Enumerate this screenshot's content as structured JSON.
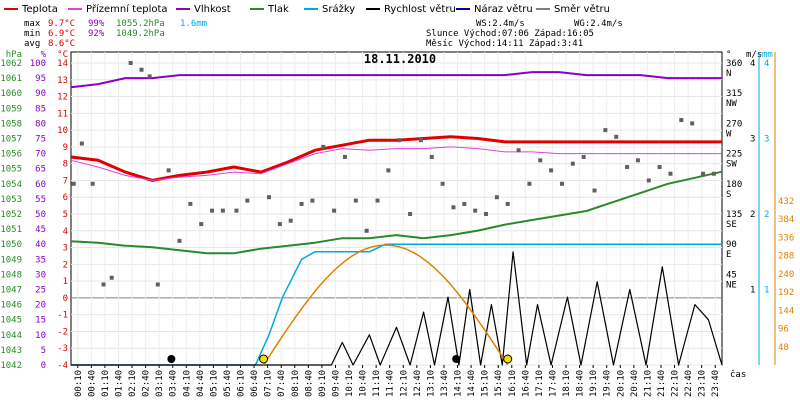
{
  "legend": [
    {
      "label": "Teplota",
      "color": "#e00000"
    },
    {
      "label": "Přízemní teplota",
      "color": "#e040e0"
    },
    {
      "label": "Vlhkost",
      "color": "#8a00c8"
    },
    {
      "label": "Tlak",
      "color": "#2a8a2a"
    },
    {
      "label": "Srážky",
      "color": "#00a8e0"
    },
    {
      "label": "Rychlost větru",
      "color": "#000000"
    },
    {
      "label": "Náraz větru",
      "color": "#0000a0"
    },
    {
      "label": "Směr větru",
      "color": "#808080"
    }
  ],
  "stats": {
    "max_label": "max",
    "min_label": "min",
    "avg_label": "avg",
    "max_temp": "9.7°C",
    "max_hum": "99%",
    "max_press": "1055.2hPa",
    "max_rain": "1.6mm",
    "min_temp": "6.9°C",
    "min_hum": "92%",
    "min_press": "1049.2hPa",
    "avg_temp": "8.6°C"
  },
  "info": {
    "ws": "WS:2.4m/s",
    "wg": "WG:2.4m/s",
    "sun": "Slunce Východ:07:06  Západ:16:05",
    "moon": "Měsíc  Východ:14:11  Západ:3:41"
  },
  "chart_data": {
    "type": "line",
    "title": "18.11.2010",
    "xlabel": "čas",
    "x_ticks": [
      "00:10",
      "00:40",
      "01:10",
      "01:40",
      "02:10",
      "02:40",
      "03:10",
      "03:40",
      "04:10",
      "04:40",
      "05:10",
      "05:40",
      "06:10",
      "06:40",
      "07:10",
      "07:40",
      "08:10",
      "08:40",
      "09:10",
      "09:40",
      "10:10",
      "10:40",
      "11:10",
      "11:40",
      "12:10",
      "12:40",
      "13:10",
      "13:40",
      "14:10",
      "14:40",
      "15:10",
      "15:40",
      "16:10",
      "16:40",
      "17:10",
      "17:40",
      "18:10",
      "18:40",
      "19:10",
      "19:40",
      "20:10",
      "20:40",
      "21:10",
      "21:40",
      "22:10",
      "22:40",
      "23:10",
      "23:40"
    ],
    "axes": {
      "hpa": {
        "label": "hPa",
        "color": "#2a8a2a",
        "ticks": [
          "1062",
          "1061",
          "1060",
          "1059",
          "1058",
          "1057",
          "1056",
          "1055",
          "1054",
          "1053",
          "1052",
          "1051",
          "1050",
          "1049",
          "1048",
          "1047",
          "1046",
          "1045",
          "1044",
          "1043",
          "1042"
        ]
      },
      "pct": {
        "label": "%",
        "color": "#8a00c8",
        "ticks": [
          "100",
          "95",
          "90",
          "85",
          "80",
          "75",
          "70",
          "65",
          "60",
          "55",
          "50",
          "45",
          "40",
          "35",
          "30",
          "25",
          "20",
          "15",
          "10",
          "5",
          "0"
        ]
      },
      "degc": {
        "label": "°C",
        "color": "#e00000",
        "ticks": [
          "14",
          "13",
          "12",
          "11",
          "10",
          "9",
          "8",
          "7",
          "6",
          "5",
          "4",
          "3",
          "2",
          "1",
          "0",
          "-1",
          "-2",
          "-3",
          "-4"
        ]
      },
      "dir": {
        "label": "°",
        "ticks": [
          "360",
          "N",
          "315",
          "NW",
          "270",
          "W",
          "225",
          "SW",
          "180",
          "S",
          "135",
          "SE",
          "90",
          "E",
          "45",
          "NE"
        ]
      },
      "ms": {
        "label": "m/s",
        "ticks": [
          "4",
          "3",
          "2",
          "1"
        ]
      },
      "mm": {
        "label": "mm",
        "color": "#00a8e0",
        "ticks": [
          "4",
          "3",
          "2",
          "1"
        ]
      },
      "w": {
        "label": "",
        "color": "#e08000",
        "ticks": [
          "432",
          "384",
          "336",
          "288",
          "240",
          "192",
          "144",
          "96",
          "48"
        ]
      }
    },
    "series": [
      {
        "name": "Teplota",
        "color": "#e00000",
        "unit": "°C",
        "x": [
          0,
          1,
          2,
          3,
          4,
          5,
          6,
          7,
          8,
          9,
          10,
          11,
          12,
          13,
          14,
          15,
          16,
          17,
          18,
          19,
          20,
          21,
          22,
          23,
          24
        ],
        "values": [
          8.4,
          8.2,
          7.5,
          7.0,
          7.3,
          7.5,
          7.8,
          7.5,
          8.1,
          8.8,
          9.1,
          9.4,
          9.4,
          9.5,
          9.6,
          9.5,
          9.3,
          9.3,
          9.3,
          9.3,
          9.3,
          9.3,
          9.3,
          9.3,
          9.3
        ]
      },
      {
        "name": "Přízemní teplota",
        "color": "#e040e0",
        "unit": "°C",
        "x": [
          0,
          1,
          2,
          3,
          4,
          5,
          6,
          7,
          8,
          9,
          10,
          11,
          12,
          13,
          14,
          15,
          16,
          17,
          18,
          19,
          20,
          21,
          22,
          23,
          24
        ],
        "values": [
          8.2,
          7.8,
          7.3,
          7.0,
          7.2,
          7.3,
          7.5,
          7.4,
          8.0,
          8.6,
          8.9,
          8.8,
          8.9,
          8.9,
          9.0,
          8.9,
          8.7,
          8.7,
          8.6,
          8.6,
          8.6,
          8.6,
          8.6,
          8.6,
          8.6
        ]
      },
      {
        "name": "Vlhkost",
        "color": "#8a00c8",
        "unit": "%",
        "x": [
          0,
          1,
          2,
          3,
          4,
          5,
          6,
          7,
          8,
          9,
          10,
          11,
          12,
          13,
          14,
          15,
          16,
          17,
          18,
          19,
          20,
          21,
          22,
          23,
          24
        ],
        "values": [
          92,
          93,
          95,
          95,
          96,
          96,
          96,
          96,
          96,
          96,
          96,
          96,
          96,
          96,
          96,
          96,
          96,
          97,
          97,
          96,
          96,
          96,
          95,
          95,
          95
        ]
      },
      {
        "name": "Tlak",
        "color": "#2a8a2a",
        "unit": "hPa",
        "x": [
          0,
          1,
          2,
          3,
          4,
          5,
          6,
          7,
          8,
          9,
          10,
          11,
          12,
          13,
          14,
          15,
          16,
          17,
          18,
          19,
          20,
          21,
          22,
          23,
          24
        ],
        "values": [
          1050.2,
          1050.1,
          1049.9,
          1049.8,
          1049.6,
          1049.4,
          1049.4,
          1049.7,
          1049.9,
          1050.1,
          1050.4,
          1050.4,
          1050.6,
          1050.4,
          1050.6,
          1050.9,
          1051.3,
          1051.6,
          1051.9,
          1052.2,
          1052.8,
          1053.4,
          1054.0,
          1054.4,
          1054.8
        ]
      },
      {
        "name": "Srážky",
        "color": "#00a8e0",
        "unit": "mm",
        "x": [
          0,
          6.8,
          7.3,
          7.8,
          8.5,
          9.0,
          10.0,
          11.0,
          11.6,
          12.0,
          13.0,
          13.5,
          14.0,
          16,
          18,
          20,
          22,
          24
        ],
        "values": [
          0,
          0,
          0.4,
          0.9,
          1.4,
          1.5,
          1.5,
          1.5,
          1.6,
          1.6,
          1.6,
          1.6,
          1.6,
          1.6,
          1.6,
          1.6,
          1.6,
          1.6
        ]
      },
      {
        "name": "Rychlost větru",
        "color": "#000000",
        "unit": "m/s",
        "x": [
          0,
          9.6,
          10.0,
          10.4,
          11.0,
          11.4,
          12.0,
          12.5,
          13.0,
          13.4,
          13.9,
          14.3,
          14.7,
          15.1,
          15.5,
          15.9,
          16.3,
          16.8,
          17.2,
          17.7,
          18.3,
          18.8,
          19.4,
          20.0,
          20.6,
          21.2,
          21.8,
          22.4,
          23.0,
          23.5,
          24
        ],
        "values": [
          0,
          0,
          0.3,
          0,
          0.4,
          0,
          0.5,
          0,
          0.7,
          0,
          0.9,
          0,
          1.0,
          0,
          0.8,
          0,
          1.5,
          0,
          0.8,
          0,
          0.9,
          0,
          1.1,
          0,
          1.0,
          0,
          1.3,
          0,
          0.8,
          0.6,
          0
        ]
      },
      {
        "name": "Směr větru",
        "color": "#606060",
        "unit": "°",
        "mode": "scatter",
        "x": [
          0.1,
          0.4,
          0.8,
          1.2,
          1.5,
          2.2,
          2.6,
          2.9,
          3.2,
          3.6,
          4.0,
          4.4,
          4.8,
          5.2,
          5.6,
          6.1,
          6.5,
          7.3,
          7.7,
          8.1,
          8.5,
          8.9,
          9.3,
          9.7,
          10.1,
          10.5,
          10.9,
          11.3,
          11.7,
          12.1,
          12.5,
          12.9,
          13.3,
          13.7,
          14.1,
          14.5,
          14.9,
          15.3,
          15.7,
          16.1,
          16.5,
          16.9,
          17.3,
          17.7,
          18.1,
          18.5,
          18.9,
          19.3,
          19.7,
          20.1,
          20.5,
          20.9,
          21.3,
          21.7,
          22.1,
          22.5,
          22.9,
          23.3,
          23.7
        ],
        "values": [
          180,
          240,
          180,
          30,
          40,
          360,
          350,
          340,
          30,
          200,
          95,
          150,
          120,
          140,
          140,
          140,
          155,
          160,
          120,
          125,
          150,
          155,
          235,
          140,
          220,
          155,
          110,
          155,
          200,
          245,
          135,
          245,
          220,
          180,
          145,
          150,
          140,
          135,
          160,
          150,
          230,
          180,
          215,
          200,
          180,
          210,
          220,
          170,
          260,
          250,
          205,
          215,
          185,
          205,
          195,
          275,
          270,
          195,
          195
        ]
      }
    ],
    "grid": true,
    "legend_position": "top"
  }
}
